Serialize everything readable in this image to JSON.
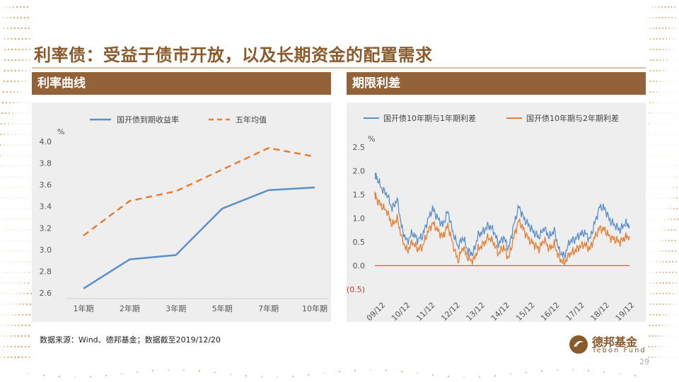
{
  "title": "利率债：受益于债市开放，以及长期资金的配置需求",
  "left_section": {
    "label": "利率曲线"
  },
  "right_section": {
    "label": "期限利差"
  },
  "source": "数据来源：Wind、德邦基金；数据截至2019/12/20",
  "logo": {
    "cn": "德邦基金",
    "en": "Tebon Fund"
  },
  "page_number": "29",
  "colors": {
    "accent": "#946238",
    "title": "#8b5a2b",
    "blue": "#5b8fc7",
    "orange": "#e67e35"
  },
  "chart_data": [
    {
      "type": "line",
      "categories": [
        "1年期",
        "2年期",
        "3年期",
        "5年期",
        "7年期",
        "10年期"
      ],
      "series": [
        {
          "name": "国开债到期收益率",
          "values": [
            2.64,
            2.91,
            2.95,
            3.38,
            3.55,
            3.575
          ],
          "color": "#5b8fc7",
          "style": "solid"
        },
        {
          "name": "五年均值",
          "values": [
            3.13,
            3.45,
            3.54,
            3.74,
            3.94,
            3.86
          ],
          "color": "#e67e35",
          "style": "dashed"
        }
      ],
      "ylabel": "%",
      "ylim": [
        2.6,
        4.0
      ],
      "yticks": [
        "2.6",
        "2.8",
        "3.0",
        "3.2",
        "3.4",
        "3.6",
        "3.8",
        "4.0"
      ],
      "legend": "top",
      "grid": false
    },
    {
      "type": "line",
      "x": [
        2009.92,
        2010.0,
        2010.2,
        2010.4,
        2010.6,
        2010.8,
        2011.0,
        2011.2,
        2011.4,
        2011.6,
        2011.8,
        2012.0,
        2012.2,
        2012.4,
        2012.6,
        2012.8,
        2013.0,
        2013.2,
        2013.4,
        2013.6,
        2013.8,
        2014.0,
        2014.2,
        2014.4,
        2014.6,
        2014.8,
        2015.0,
        2015.2,
        2015.4,
        2015.6,
        2015.8,
        2016.0,
        2016.2,
        2016.4,
        2016.6,
        2016.8,
        2017.0,
        2017.2,
        2017.4,
        2017.6,
        2017.8,
        2018.0,
        2018.2,
        2018.4,
        2018.6,
        2018.8,
        2019.0,
        2019.2,
        2019.4,
        2019.6,
        2019.8,
        2019.97
      ],
      "series": [
        {
          "name": "国开债10年期与1年期利差",
          "color": "#5b8fc7",
          "values": [
            1.95,
            1.85,
            1.62,
            1.5,
            1.2,
            1.4,
            0.75,
            0.5,
            0.7,
            0.55,
            0.62,
            0.95,
            1.2,
            1.0,
            0.85,
            1.15,
            0.7,
            0.4,
            0.6,
            0.3,
            0.25,
            0.65,
            0.72,
            0.85,
            0.75,
            0.45,
            0.6,
            0.35,
            0.85,
            1.25,
            1.0,
            0.85,
            0.7,
            0.6,
            0.8,
            0.6,
            0.75,
            0.3,
            0.2,
            0.5,
            0.55,
            0.65,
            0.7,
            0.55,
            0.9,
            1.25,
            1.2,
            0.95,
            0.85,
            0.75,
            0.9,
            0.85
          ]
        },
        {
          "name": "国开债10年期与2年期利差",
          "color": "#e67e35",
          "values": [
            1.5,
            1.4,
            1.25,
            1.15,
            0.85,
            1.0,
            0.55,
            0.3,
            0.5,
            0.35,
            0.4,
            0.7,
            0.9,
            0.75,
            0.6,
            0.85,
            0.45,
            0.1,
            0.4,
            0.15,
            0.1,
            0.35,
            0.45,
            0.6,
            0.5,
            0.25,
            0.4,
            0.15,
            0.6,
            0.95,
            0.75,
            0.55,
            0.45,
            0.35,
            0.55,
            0.35,
            0.45,
            0.15,
            0.05,
            0.25,
            0.3,
            0.4,
            0.45,
            0.35,
            0.6,
            0.8,
            0.75,
            0.6,
            0.55,
            0.5,
            0.6,
            0.62
          ]
        }
      ],
      "ylabel": "%",
      "ylim": [
        -0.5,
        2.5
      ],
      "yticks": [
        "(0.5)",
        "0.0",
        "0.5",
        "1.0",
        "1.5",
        "2.0",
        "2.5"
      ],
      "xticks": [
        "09/12",
        "10/12",
        "11/12",
        "12/12",
        "13/12",
        "14/12",
        "15/12",
        "16/12",
        "17/12",
        "18/12",
        "19/12"
      ],
      "legend": "top",
      "grid": false
    }
  ]
}
